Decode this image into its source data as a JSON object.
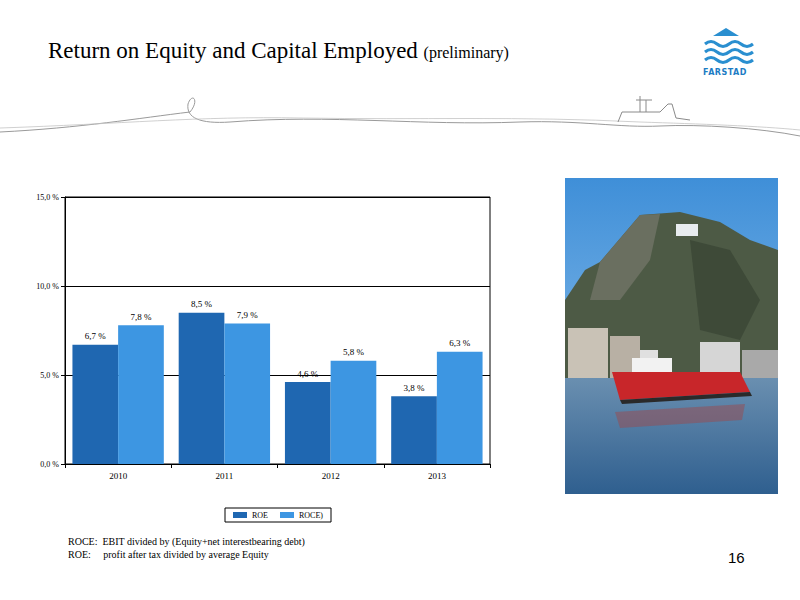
{
  "page": {
    "title": "Return on Equity and Capital Employed",
    "subtitle": "(preliminary)",
    "logo_text": "FARSTAD",
    "notes": [
      "ROCE:  EBIT divided by (Equity+net interestbearing debt)",
      "ROE:     profit after tax divided by average Equity"
    ],
    "page_number": "16"
  },
  "chart_data": {
    "type": "bar",
    "categories": [
      "2010",
      "2011",
      "2012",
      "2013"
    ],
    "series": [
      {
        "name": "ROE",
        "color": "#1f67b1",
        "values": [
          6.7,
          8.5,
          4.6,
          3.8
        ],
        "value_labels": [
          "6,7 %",
          "8,5 %",
          "4,6 %",
          "3,8 %"
        ]
      },
      {
        "name": "ROCE)",
        "color": "#3d96e2",
        "values": [
          7.8,
          7.9,
          5.8,
          6.3
        ],
        "value_labels": [
          "7,8 %",
          "7,9 %",
          "5,8 %",
          "6,3 %"
        ]
      }
    ],
    "ylim": [
      0,
      15
    ],
    "yticks": [
      {
        "value": 0,
        "label": "0,0 %"
      },
      {
        "value": 5,
        "label": "5,0 %"
      },
      {
        "value": 10,
        "label": "10,0 %"
      },
      {
        "value": 15,
        "label": "15,0 %"
      }
    ],
    "grid": true,
    "legend": "bottom",
    "data_labels": true
  }
}
